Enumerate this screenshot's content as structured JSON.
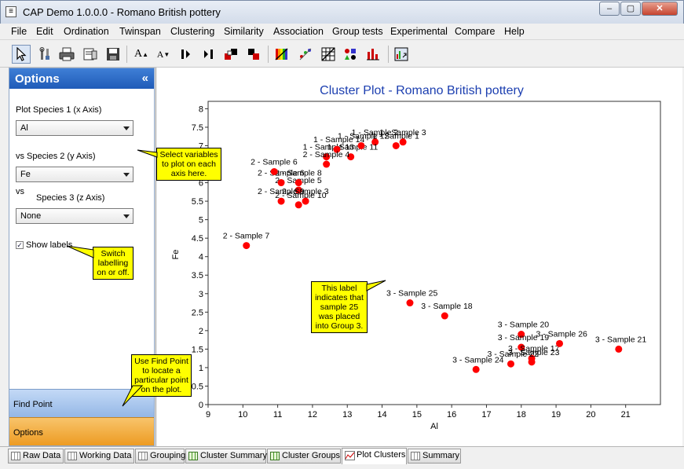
{
  "window": {
    "title": "CAP Demo 1.0.0.0 - Romano British pottery",
    "minimize": "–",
    "maximize": "▢",
    "close": "✕"
  },
  "menu": [
    "File",
    "Edit",
    "Ordination",
    "Twinspan",
    "Clustering",
    "Similarity",
    "Association",
    "Group tests",
    "Experimental",
    "Compare",
    "Help"
  ],
  "toolbar_icons": [
    "pointer-icon",
    "tools-icon",
    "print-icon",
    "print-preview-icon",
    "save-icon",
    "font-larger-icon",
    "font-smaller-icon",
    "move-left-icon",
    "move-right-icon",
    "color-palette-icon",
    "color-set-icon",
    "rainbow-icon",
    "scatter-icon",
    "grid-icon",
    "symbols-icon",
    "bar-chart-icon",
    "export-chart-icon"
  ],
  "toolbar_labels": {
    "font_larger": "A",
    "font_smaller": "A"
  },
  "options_panel": {
    "title": "Options",
    "collapse": "«",
    "species1_label": "Plot Species 1 (x Axis)",
    "species1_value": "Al",
    "species2_label": "vs Species 2 (y Axis)",
    "species2_value": "Fe",
    "vs_label": "vs",
    "species3_label": "Species 3 (z Axis)",
    "species3_value": "None",
    "show_labels": "Show labels",
    "show_labels_checked": true,
    "find_point": "Find Point",
    "options": "Options"
  },
  "callouts": {
    "select_variables": "Select variables to plot on each axis here.",
    "switch_labelling": "Switch labelling on or off.",
    "find_point_help": "Use Find Point to locate a particular point on the plot.",
    "group_label_help": "This label indicates that sample 25 was placed into Group 3."
  },
  "tabs": [
    {
      "label": "Raw Data",
      "icon": "grid-icon",
      "active": false
    },
    {
      "label": "Working Data",
      "icon": "grid-icon",
      "active": false
    },
    {
      "label": "Grouping",
      "icon": "grid-icon",
      "active": false
    },
    {
      "label": "Cluster Summary",
      "icon": "green-grid-icon",
      "active": false
    },
    {
      "label": "Cluster Groups",
      "icon": "green-grid-icon",
      "active": false
    },
    {
      "label": "Plot Clusters",
      "icon": "chart-icon",
      "active": true
    },
    {
      "label": "Summary",
      "icon": "grid-icon",
      "active": false
    }
  ],
  "chart_data": {
    "type": "scatter",
    "title": "Cluster Plot - Romano British pottery",
    "xlabel": "Al",
    "ylabel": "Fe",
    "xlim": [
      9,
      22
    ],
    "ylim": [
      0,
      8.2
    ],
    "xticks": [
      9,
      10,
      11,
      12,
      13,
      14,
      15,
      16,
      17,
      18,
      19,
      20,
      21
    ],
    "yticks": [
      0,
      0.5,
      1,
      1.5,
      2,
      2.5,
      3,
      3.5,
      4,
      4.5,
      5,
      5.5,
      6,
      6.5,
      7,
      7.5,
      8
    ],
    "grid": false,
    "point_color": "#ff0000",
    "points": [
      {
        "x": 14.4,
        "y": 7.0,
        "label": "1 - Sample 1"
      },
      {
        "x": 13.8,
        "y": 7.1,
        "label": "1 - Sample 2"
      },
      {
        "x": 14.6,
        "y": 7.1,
        "label": "1 - Sample 3"
      },
      {
        "x": 11.6,
        "y": 5.8,
        "label": "2 - Sample 5"
      },
      {
        "x": 11.1,
        "y": 6.0,
        "label": "2 - Sample 6"
      },
      {
        "x": 10.1,
        "y": 4.3,
        "label": "2 - Sample 7"
      },
      {
        "x": 11.6,
        "y": 6.0,
        "label": "2 - Sample 8"
      },
      {
        "x": 11.1,
        "y": 5.5,
        "label": "2 - Sample 9"
      },
      {
        "x": 11.6,
        "y": 5.4,
        "label": "2 - Sample 10"
      },
      {
        "x": 13.1,
        "y": 6.7,
        "label": "1 - Sample 11"
      },
      {
        "x": 13.4,
        "y": 7.0,
        "label": "1 - Sample 12"
      },
      {
        "x": 12.4,
        "y": 6.7,
        "label": "1 - Sample 13"
      },
      {
        "x": 12.7,
        "y": 6.9,
        "label": "1 - Sample 14"
      },
      {
        "x": 12.4,
        "y": 6.5,
        "label": "2 - Sample 4"
      },
      {
        "x": 11.8,
        "y": 5.5,
        "label": "2 - Sample 3"
      },
      {
        "x": 10.9,
        "y": 6.3,
        "label": "2 - Sample 6"
      },
      {
        "x": 14.8,
        "y": 2.75,
        "label": "3 - Sample 25"
      },
      {
        "x": 15.8,
        "y": 2.4,
        "label": "3 - Sample 18"
      },
      {
        "x": 18.0,
        "y": 1.9,
        "label": "3 - Sample 20"
      },
      {
        "x": 18.0,
        "y": 1.55,
        "label": "3 - Sample 19"
      },
      {
        "x": 18.3,
        "y": 1.25,
        "label": "3 - Sample 17"
      },
      {
        "x": 19.1,
        "y": 1.65,
        "label": "3 - Sample 26"
      },
      {
        "x": 18.3,
        "y": 1.15,
        "label": "3 - Sample 23"
      },
      {
        "x": 17.7,
        "y": 1.1,
        "label": "3 - Sample 22"
      },
      {
        "x": 16.7,
        "y": 0.95,
        "label": "3 - Sample 24"
      },
      {
        "x": 20.8,
        "y": 1.5,
        "label": "3 - Sample 21"
      }
    ]
  }
}
